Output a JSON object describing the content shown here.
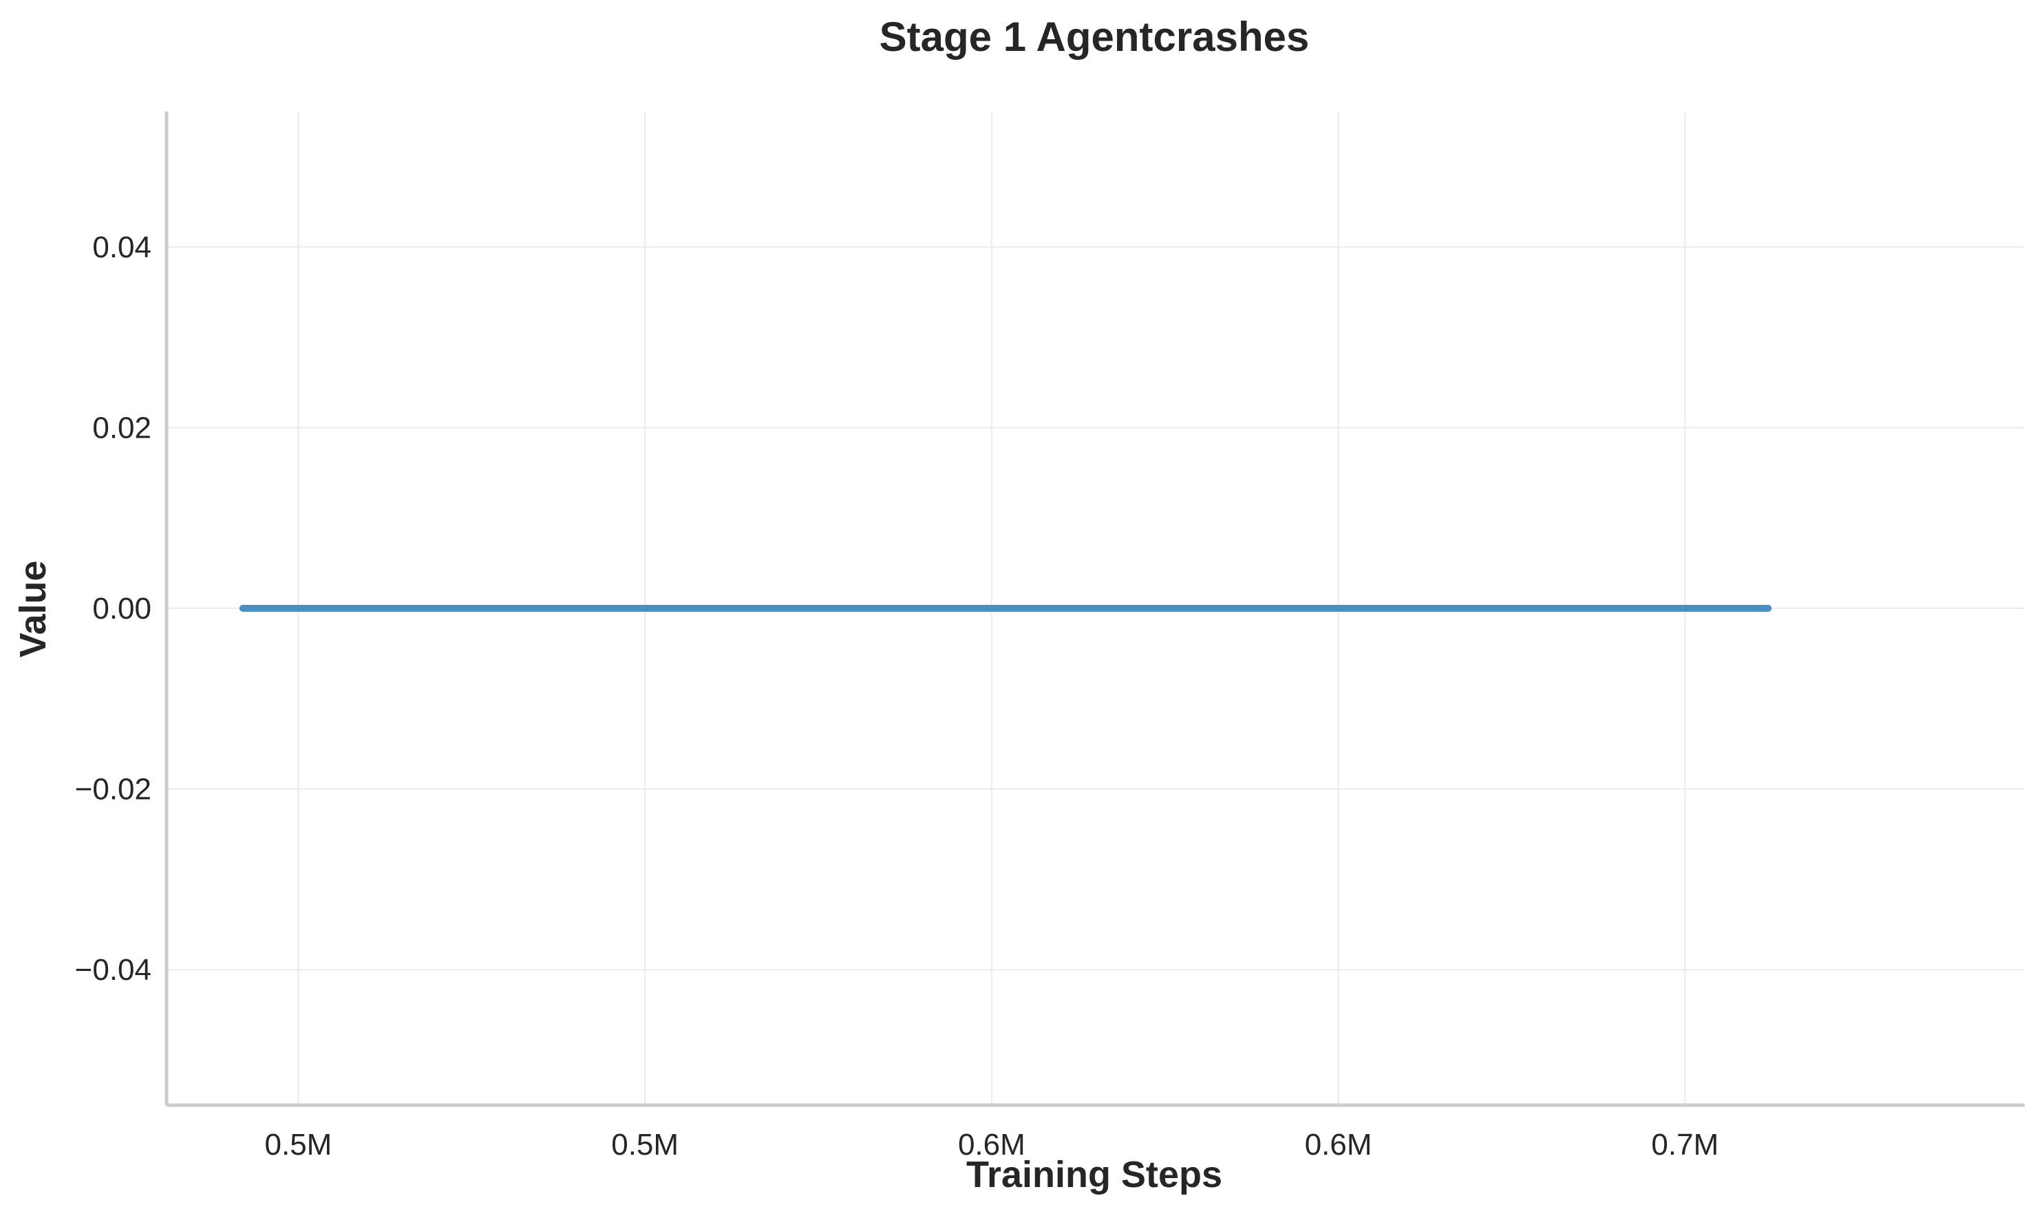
{
  "chart_data": {
    "type": "line",
    "title": "Stage 1 Agentcrashes",
    "xlabel": "Training Steps",
    "ylabel": "Value",
    "xlim": [
      474000,
      742000
    ],
    "ylim": [
      -0.055,
      0.055
    ],
    "x_ticks": [
      {
        "value": 493000,
        "label": "0.5M"
      },
      {
        "value": 543000,
        "label": "0.5M"
      },
      {
        "value": 593000,
        "label": "0.6M"
      },
      {
        "value": 643000,
        "label": "0.6M"
      },
      {
        "value": 693000,
        "label": "0.7M"
      }
    ],
    "y_ticks": [
      {
        "value": -0.04,
        "label": "−0.04"
      },
      {
        "value": -0.02,
        "label": "−0.02"
      },
      {
        "value": 0.0,
        "label": "0.00"
      },
      {
        "value": 0.02,
        "label": "0.02"
      },
      {
        "value": 0.04,
        "label": "0.04"
      }
    ],
    "grid": true,
    "series": [
      {
        "color": "#4a8fc1",
        "x": [
          485000,
          525000,
          565000,
          605000,
          645000,
          685000,
          705000
        ],
        "y": [
          0,
          0,
          0,
          0,
          0,
          0,
          0
        ]
      }
    ]
  }
}
